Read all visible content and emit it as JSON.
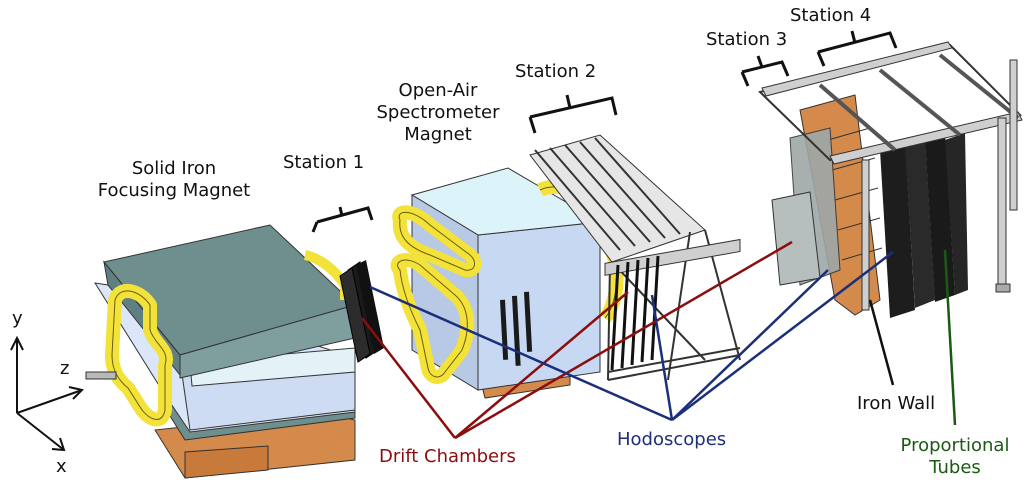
{
  "labels": {
    "station1": "Station 1",
    "station2": "Station 2",
    "station3": "Station 3",
    "station4": "Station 4",
    "magnet1_line1": "Solid Iron",
    "magnet1_line2": "Focusing Magnet",
    "magnet2_line1": "Open-Air",
    "magnet2_line2": "Spectrometer",
    "magnet2_line3": "Magnet",
    "drift": "Drift Chambers",
    "hodo": "Hodoscopes",
    "ironwall": "Iron Wall",
    "prop_line1": "Proportional",
    "prop_line2": "Tubes",
    "axis_x": "x",
    "axis_y": "y",
    "axis_z": "z"
  },
  "colors": {
    "drift": "#8b0d0d",
    "hodo": "#1b2f7a",
    "prop": "#1c5a14",
    "coil": "#f2e23a",
    "iron_top": "#6f8f8f",
    "copper": "#d48a4a",
    "light_blue": "#cfe0f4"
  }
}
